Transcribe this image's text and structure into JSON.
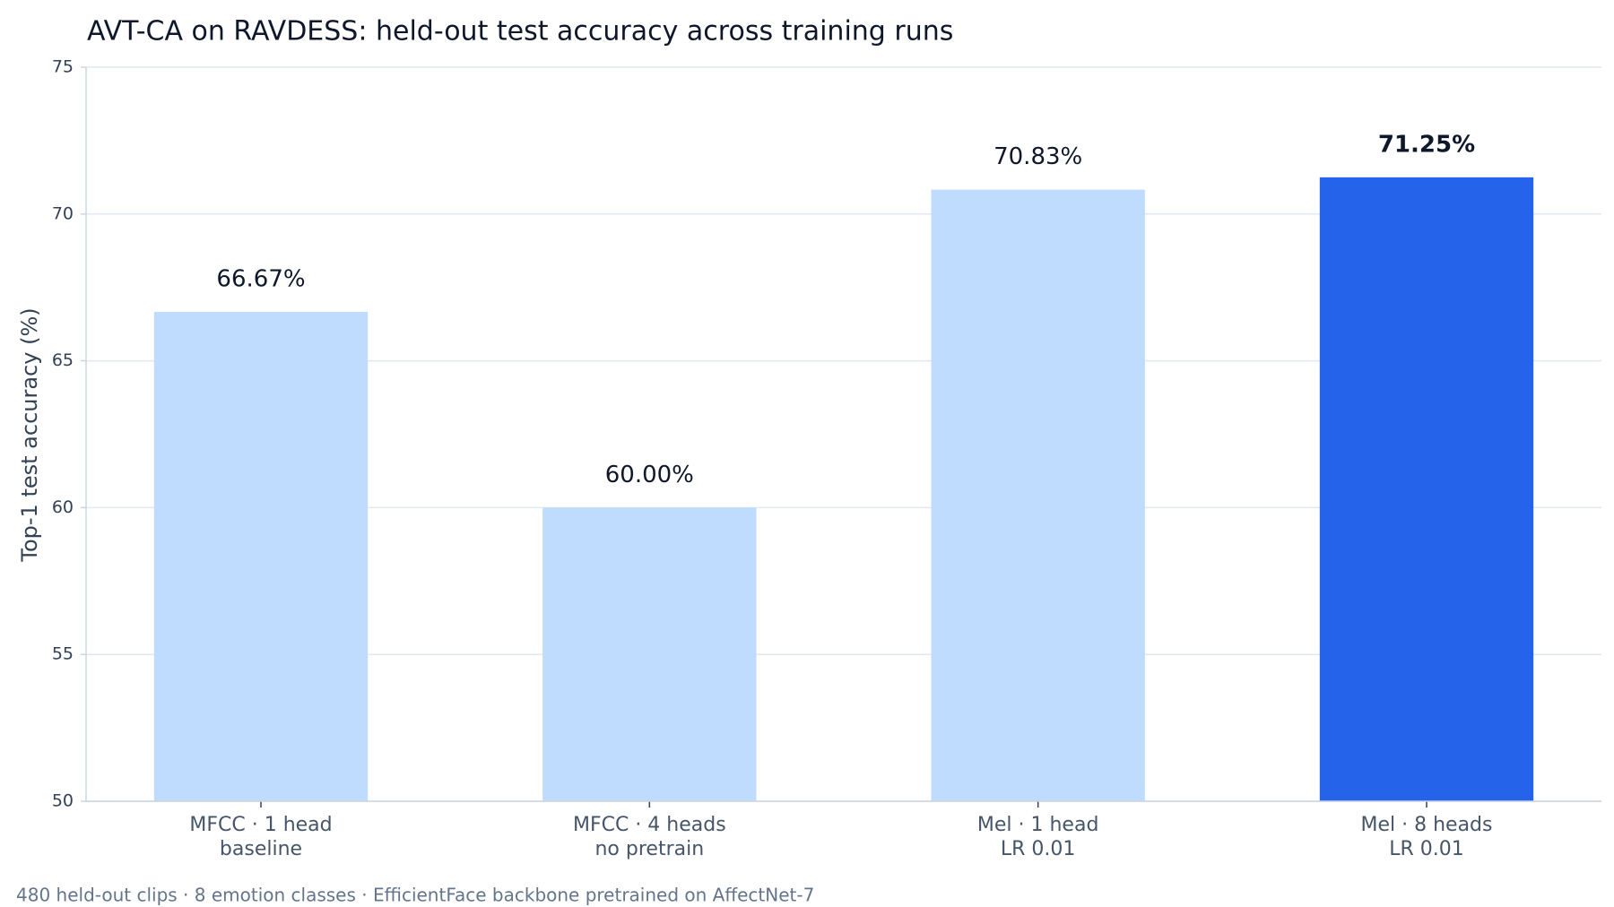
{
  "chart_data": {
    "type": "bar",
    "title": "AVT-CA on RAVDESS: held-out test accuracy across training runs",
    "ylabel": "Top-1 test accuracy (%)",
    "footnote": "480 held-out clips · 8 emotion classes · EfficientFace backbone pretrained on AffectNet-7",
    "categories": [
      [
        "MFCC · 1 head",
        "baseline"
      ],
      [
        "MFCC · 4 heads",
        "no pretrain"
      ],
      [
        "Mel · 1 head",
        "LR 0.01"
      ],
      [
        "Mel · 8 heads",
        "LR 0.01"
      ]
    ],
    "values": [
      66.67,
      60.0,
      70.83,
      71.25
    ],
    "value_labels": [
      "66.67%",
      "60.00%",
      "70.83%",
      "71.25%"
    ],
    "colors": [
      "#bfdbfe",
      "#bfdbfe",
      "#bfdbfe",
      "#2563eb"
    ],
    "label_weight": [
      "normal",
      "normal",
      "normal",
      "bold"
    ],
    "ylim": [
      50,
      75
    ],
    "yticks": [
      50,
      55,
      60,
      65,
      70,
      75
    ],
    "grid": true
  }
}
